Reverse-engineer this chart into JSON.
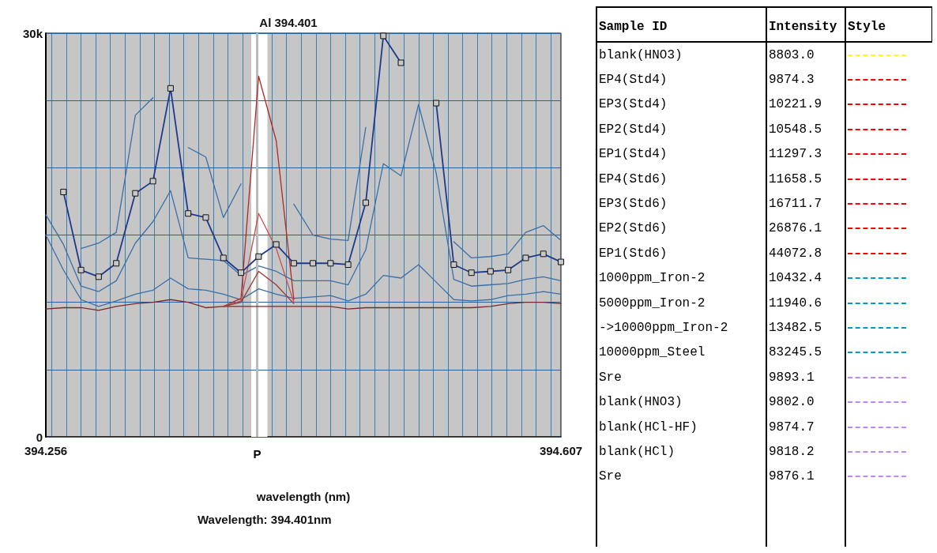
{
  "chart_data": [
    {
      "type": "line",
      "title": "Al 394.401",
      "xlabel": "wavelength (nm)",
      "annotations": [
        "Wavelength: 394.401nm"
      ],
      "x": [
        394.256,
        394.268,
        394.28,
        394.292,
        394.304,
        394.317,
        394.329,
        394.341,
        394.353,
        394.365,
        394.377,
        394.389,
        394.401,
        394.413,
        394.425,
        394.438,
        394.45,
        394.462,
        394.474,
        394.486,
        394.498,
        394.51,
        394.522,
        394.534,
        394.546,
        394.559,
        394.571,
        394.583,
        394.595,
        394.607
      ],
      "series": [
        {
          "color": "#3a6fa8",
          "values": [
            null,
            null,
            14000,
            14400,
            15200,
            23900,
            25200,
            null,
            21500,
            20800,
            16300,
            18800,
            null,
            null,
            17300,
            15000,
            14700,
            14600,
            23000,
            null,
            null,
            null,
            null,
            14500,
            13300,
            13400,
            13600,
            15200,
            15700,
            14600
          ]
        },
        {
          "color": "#3a6fa8",
          "values": [
            16500,
            14300,
            11200,
            10800,
            11600,
            14400,
            16000,
            18300,
            13300,
            13200,
            13100,
            12000,
            12700,
            12300,
            11600,
            11600,
            11600,
            11300,
            13900,
            20300,
            19400,
            24700,
            19600,
            11700,
            11200,
            11300,
            11400,
            11700,
            11900,
            11600
          ]
        },
        {
          "color": "#3a6fa8",
          "values": [
            15000,
            12400,
            10200,
            9700,
            10100,
            10600,
            10900,
            11800,
            11000,
            10900,
            10600,
            10200,
            11000,
            10600,
            10300,
            10400,
            10500,
            10100,
            10600,
            12000,
            11800,
            12800,
            11500,
            10200,
            10100,
            10200,
            10500,
            10600,
            10800,
            10600
          ]
        },
        {
          "color": "#7a2a2a",
          "values": [
            9500,
            9600,
            9600,
            9400,
            9700,
            9900,
            10000,
            10200,
            10000,
            9600,
            9700,
            9700,
            9700,
            9700,
            9700,
            9700,
            9700,
            9500,
            9600,
            9600,
            9600,
            9600,
            9600,
            9600,
            9600,
            9700,
            9900,
            10000,
            10000,
            9900
          ]
        },
        {
          "color": "#b02828",
          "values": [
            null,
            null,
            null,
            null,
            null,
            null,
            null,
            null,
            null,
            null,
            9700,
            10300,
            26800,
            22000,
            10200,
            null,
            null,
            null,
            null,
            null,
            null,
            null,
            null,
            null,
            null,
            null,
            null,
            null,
            null,
            null
          ]
        },
        {
          "color": "#c85050",
          "values": [
            null,
            null,
            null,
            null,
            null,
            null,
            null,
            null,
            null,
            null,
            9700,
            10100,
            16600,
            14000,
            10000,
            null,
            null,
            null,
            null,
            null,
            null,
            null,
            null,
            null,
            null,
            null,
            null,
            null,
            null,
            null
          ]
        },
        {
          "color": "#983838",
          "values": [
            null,
            null,
            null,
            null,
            null,
            null,
            null,
            null,
            null,
            null,
            9700,
            10000,
            12300,
            11300,
            9900,
            null,
            null,
            null,
            null,
            null,
            null,
            null,
            null,
            null,
            null,
            null,
            null,
            null,
            null,
            null
          ]
        },
        {
          "color": "#1f3a8a",
          "marker": "square",
          "values": [
            null,
            18200,
            12400,
            11900,
            12900,
            18100,
            19000,
            25900,
            16600,
            16300,
            13300,
            12200,
            13400,
            14300,
            12900,
            12900,
            12900,
            12800,
            17400,
            29800,
            27800,
            null,
            24800,
            12800,
            12200,
            12300,
            12400,
            13300,
            13600,
            13000
          ]
        }
      ],
      "xlim": [
        394.256,
        394.607
      ],
      "xticks": [
        394.256,
        {
          "value": 394.26,
          "label": null
        },
        {
          "value": 394.27,
          "label": null
        },
        {
          "value": 394.28,
          "label": null
        },
        {
          "value": 394.29,
          "label": null
        },
        {
          "value": 394.3,
          "label": null
        },
        {
          "value": 394.31,
          "label": null
        },
        {
          "value": 394.32,
          "label": null
        },
        {
          "value": 394.33,
          "label": null
        },
        {
          "value": 394.34,
          "label": null
        },
        {
          "value": 394.35,
          "label": null
        },
        {
          "value": 394.36,
          "label": null
        },
        {
          "value": 394.37,
          "label": null
        },
        {
          "value": 394.38,
          "label": null
        },
        {
          "value": 394.39,
          "label": null
        },
        {
          "value": 394.4,
          "label": null
        },
        {
          "value": 394.41,
          "label": null
        },
        {
          "value": 394.42,
          "label": null
        },
        {
          "value": 394.43,
          "label": null
        },
        {
          "value": 394.44,
          "label": null
        },
        {
          "value": 394.45,
          "label": null
        },
        {
          "value": 394.46,
          "label": null
        },
        {
          "value": 394.47,
          "label": null
        },
        {
          "value": 394.48,
          "label": null
        },
        {
          "value": 394.49,
          "label": null
        },
        {
          "value": 394.5,
          "label": null
        },
        {
          "value": 394.51,
          "label": null
        },
        {
          "value": 394.52,
          "label": null
        },
        {
          "value": 394.53,
          "label": null
        },
        {
          "value": 394.54,
          "label": null
        },
        {
          "value": 394.55,
          "label": null
        },
        {
          "value": 394.56,
          "label": null
        },
        {
          "value": 394.57,
          "label": null
        },
        {
          "value": 394.58,
          "label": null
        },
        {
          "value": 394.59,
          "label": null
        },
        {
          "value": 394.6,
          "label": null
        },
        394.607
      ],
      "ylim": [
        0,
        30000
      ],
      "yticks": [
        {
          "value": 0,
          "label": "0"
        },
        {
          "value": 5000,
          "label": null
        },
        {
          "value": 10000,
          "label": null
        },
        {
          "value": 15000,
          "label": null
        },
        {
          "value": 20000,
          "label": null
        },
        {
          "value": 25000,
          "label": null
        },
        {
          "value": 30000,
          "label": "30k"
        }
      ],
      "bands": [
        {
          "axis": "x",
          "from": 394.396,
          "to": 394.407,
          "color": "#ffffff"
        }
      ],
      "ref_lines": [
        {
          "axis": "x",
          "value": 394.401,
          "label": "P",
          "color": "#bbbbbb"
        }
      ],
      "grid": true,
      "marker": "none",
      "line_style": "solid"
    },
    {
      "type": "other",
      "annotations": [
        "Sample ID",
        "Intensity",
        "Style"
      ],
      "categories": [
        "blank(HNO3)",
        "EP4(Std4)",
        "EP3(Std4)",
        "EP2(Std4)",
        "EP1(Std4)",
        "EP4(Std6)",
        "EP3(Std6)",
        "EP2(Std6)",
        "EP1(Std6)",
        "1000ppm_Iron-2",
        "5000ppm_Iron-2",
        "->10000ppm_Iron-2",
        "10000ppm_Steel",
        "Sre",
        "blank(HNO3)",
        "blank(HCl-HF)",
        "blank(HCl)",
        "Sre"
      ],
      "value_labels": [
        "8803.0",
        "9874.3",
        "10221.9",
        "10548.5",
        "11297.3",
        "11658.5",
        "16711.7",
        "26876.1",
        "44072.8",
        "10432.4",
        "11940.6",
        "13482.5",
        "83245.5",
        "9893.1",
        "9802.0",
        "9874.7",
        "9818.2",
        "9876.1"
      ],
      "colors": [
        "#ffff00",
        "#ff0000",
        "#ff0000",
        "#ff0000",
        "#ff0000",
        "#ff0000",
        "#ff0000",
        "#ff0000",
        "#ff0000",
        "#0099cc",
        "#0099cc",
        "#0099cc",
        "#0099cc",
        "#bb88ff",
        "#bb88ff",
        "#bb88ff",
        "#bb88ff",
        "#bb88ff"
      ]
    }
  ]
}
